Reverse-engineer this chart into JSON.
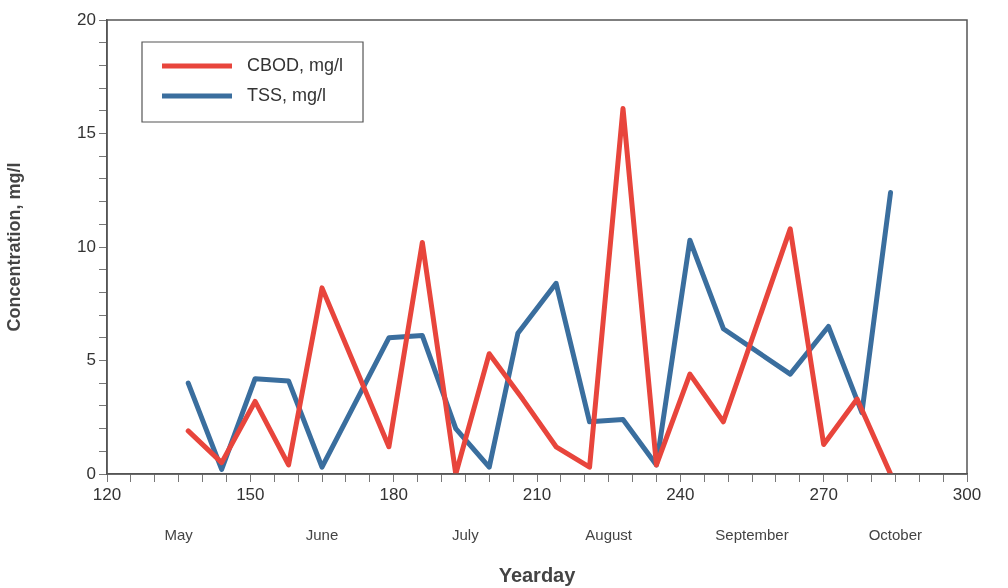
{
  "chart_data": {
    "type": "line",
    "xlabel": "Yearday",
    "ylabel": "Concentration, mg/l",
    "xlim": [
      120,
      300
    ],
    "xticks": [
      120,
      {
        "value": 125,
        "label": null
      },
      {
        "value": 130,
        "label": null
      },
      {
        "value": 135,
        "label": null
      },
      {
        "value": 140,
        "label": null
      },
      {
        "value": 145,
        "label": null
      },
      150,
      {
        "value": 155,
        "label": null
      },
      {
        "value": 160,
        "label": null
      },
      {
        "value": 165,
        "label": null
      },
      {
        "value": 170,
        "label": null
      },
      {
        "value": 175,
        "label": null
      },
      180,
      {
        "value": 185,
        "label": null
      },
      {
        "value": 190,
        "label": null
      },
      {
        "value": 195,
        "label": null
      },
      {
        "value": 200,
        "label": null
      },
      {
        "value": 205,
        "label": null
      },
      210,
      {
        "value": 215,
        "label": null
      },
      {
        "value": 220,
        "label": null
      },
      {
        "value": 225,
        "label": null
      },
      {
        "value": 230,
        "label": null
      },
      {
        "value": 235,
        "label": null
      },
      240,
      {
        "value": 245,
        "label": null
      },
      {
        "value": 250,
        "label": null
      },
      {
        "value": 255,
        "label": null
      },
      {
        "value": 260,
        "label": null
      },
      {
        "value": 265,
        "label": null
      },
      270,
      {
        "value": 275,
        "label": null
      },
      {
        "value": 280,
        "label": null
      },
      {
        "value": 285,
        "label": null
      },
      {
        "value": 290,
        "label": null
      },
      {
        "value": 295,
        "label": null
      },
      300
    ],
    "ylim": [
      0,
      20
    ],
    "yticks": [
      0,
      {
        "value": 1,
        "label": null
      },
      {
        "value": 2,
        "label": null
      },
      {
        "value": 3,
        "label": null
      },
      {
        "value": 4,
        "label": null
      },
      5,
      {
        "value": 6,
        "label": null
      },
      {
        "value": 7,
        "label": null
      },
      {
        "value": 8,
        "label": null
      },
      {
        "value": 9,
        "label": null
      },
      10,
      {
        "value": 11,
        "label": null
      },
      {
        "value": 12,
        "label": null
      },
      {
        "value": 13,
        "label": null
      },
      {
        "value": 14,
        "label": null
      },
      15,
      {
        "value": 16,
        "label": null
      },
      {
        "value": 17,
        "label": null
      },
      {
        "value": 18,
        "label": null
      },
      {
        "value": 19,
        "label": null
      },
      20
    ],
    "series": [
      {
        "name": "CBOD, mg/l",
        "color": "#e8453c",
        "x": [
          137,
          144,
          151,
          158,
          165,
          179,
          186,
          193,
          200,
          207,
          214,
          221,
          228,
          235,
          242,
          249,
          263,
          270,
          277,
          284
        ],
        "values": [
          1.9,
          0.5,
          3.2,
          0.4,
          8.2,
          1.2,
          10.2,
          0,
          5.3,
          3.3,
          1.2,
          0.3,
          16.1,
          0.4,
          4.4,
          2.3,
          10.8,
          1.3,
          3.3,
          0
        ]
      },
      {
        "name": "TSS, mg/l",
        "color": "#3a6e9e",
        "x": [
          137,
          144,
          151,
          158,
          165,
          179,
          186,
          193,
          200,
          206,
          214,
          221,
          228,
          235,
          242,
          249,
          263,
          271,
          278,
          284
        ],
        "values": [
          4.0,
          0.2,
          4.2,
          4.1,
          0.3,
          6.0,
          6.1,
          2.0,
          0.3,
          6.2,
          8.4,
          2.3,
          2.4,
          0.4,
          10.3,
          6.4,
          4.4,
          6.5,
          2.7,
          12.4
        ]
      }
    ],
    "annotations": [
      "May",
      "June",
      "July",
      "August",
      "September",
      "October"
    ],
    "legend": "top left",
    "grid": false,
    "marker": "none",
    "line_style": "solid"
  }
}
